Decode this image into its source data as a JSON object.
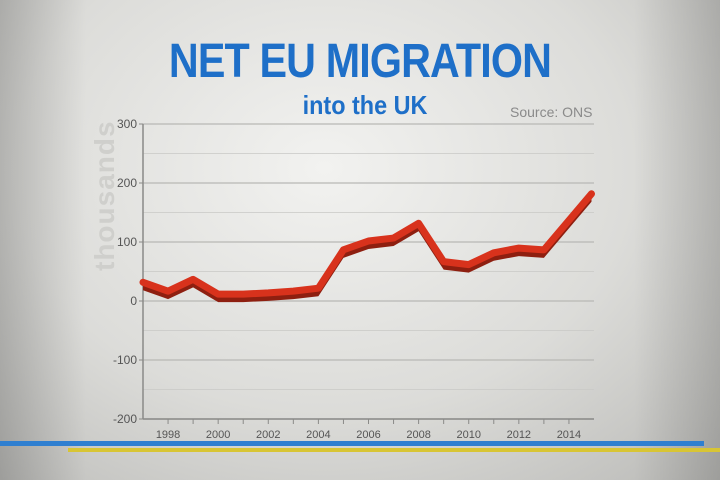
{
  "title": "NET EU MIGRATION",
  "subtitle": "into the UK",
  "source": "Source: ONS",
  "colors": {
    "title": "#1e6fc8",
    "line": "#d8321c",
    "line_shadow": "#8e1f10",
    "stripe_blue": "#2f7fd0",
    "stripe_yellow": "#d8c534"
  },
  "chart_data": {
    "type": "line",
    "title": "NET EU MIGRATION",
    "subtitle": "into the UK",
    "ylabel": "thousands",
    "xlabel": "",
    "ylim": [
      -200,
      300
    ],
    "xlim": [
      1997,
      2015
    ],
    "grid": true,
    "y_ticks": [
      300,
      200,
      100,
      0,
      -100,
      -200
    ],
    "x_ticks": [
      1998,
      2000,
      2002,
      2004,
      2006,
      2008,
      2010,
      2012,
      2014
    ],
    "series": [
      {
        "x": [
          1997,
          1998,
          1999,
          2000,
          2001,
          2002,
          2003,
          2004,
          2005,
          2006,
          2007,
          2008,
          2009,
          2010,
          2011,
          2012,
          2013,
          2014.9
        ],
        "values": [
          30,
          15,
          35,
          10,
          10,
          12,
          15,
          20,
          85,
          100,
          105,
          130,
          65,
          60,
          80,
          88,
          85,
          180
        ]
      }
    ]
  }
}
